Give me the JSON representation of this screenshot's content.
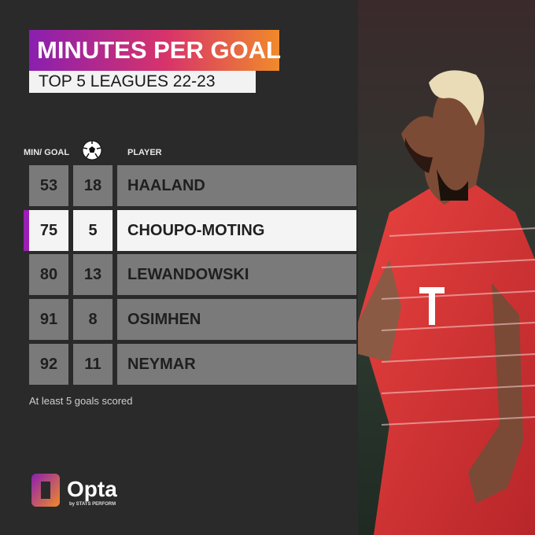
{
  "header": {
    "title": "MINUTES PER GOAL",
    "subtitle": "TOP 5 LEAGUES 22-23"
  },
  "table": {
    "columns": [
      "MIN/ GOAL",
      "PLAYER"
    ],
    "rows": [
      {
        "min_per_goal": 53,
        "goals": 18,
        "player": "HAALAND"
      },
      {
        "min_per_goal": 75,
        "goals": 5,
        "player": "CHOUPO-MOTING",
        "highlighted": true
      },
      {
        "min_per_goal": 80,
        "goals": 13,
        "player": "LEWANDOWSKI"
      },
      {
        "min_per_goal": 91,
        "goals": 8,
        "player": "OSIMHEN"
      },
      {
        "min_per_goal": 92,
        "goals": 11,
        "player": "NEYMAR"
      }
    ]
  },
  "note": "At least 5 goals scored",
  "brand": {
    "name": "Opta",
    "tagline": "by STATS PERFORM"
  }
}
